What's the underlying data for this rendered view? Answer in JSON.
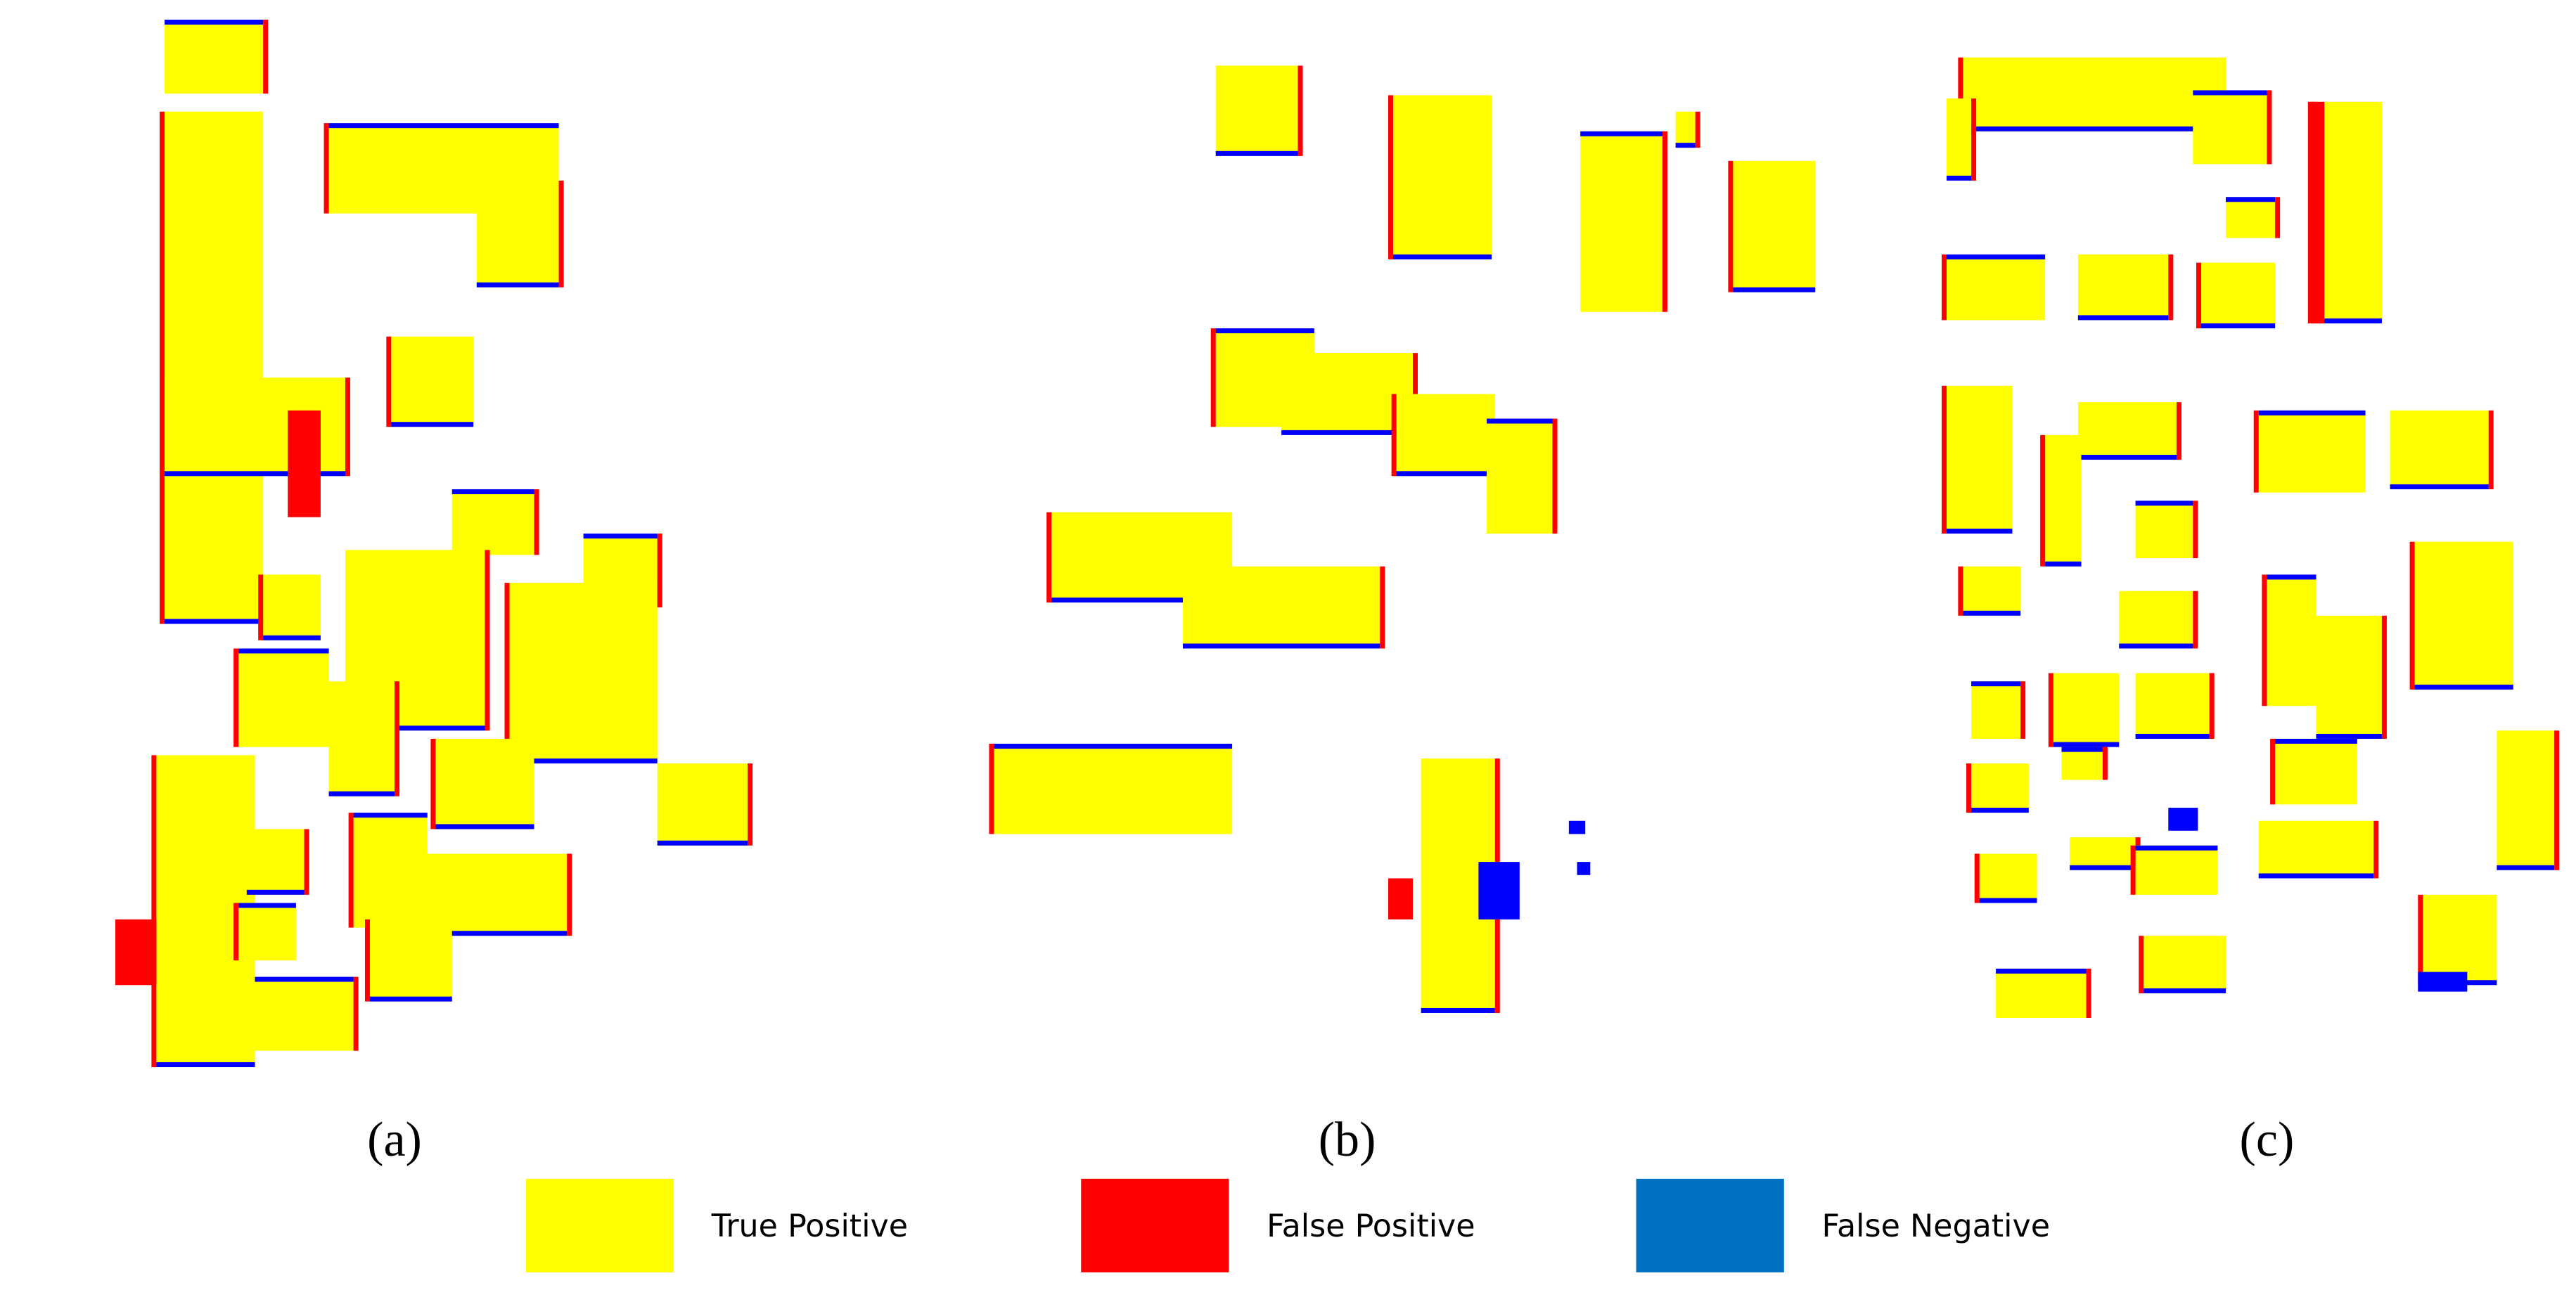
{
  "panels": [
    {
      "label": "(a)"
    },
    {
      "label": "(b)"
    },
    {
      "label": "(c)"
    }
  ],
  "legend": [
    {
      "label": "True Positive",
      "color": "#ffff00"
    },
    {
      "label": "False Positive",
      "color": "#ff0000"
    },
    {
      "label": "False Negative",
      "color": "#0070c0"
    }
  ]
}
